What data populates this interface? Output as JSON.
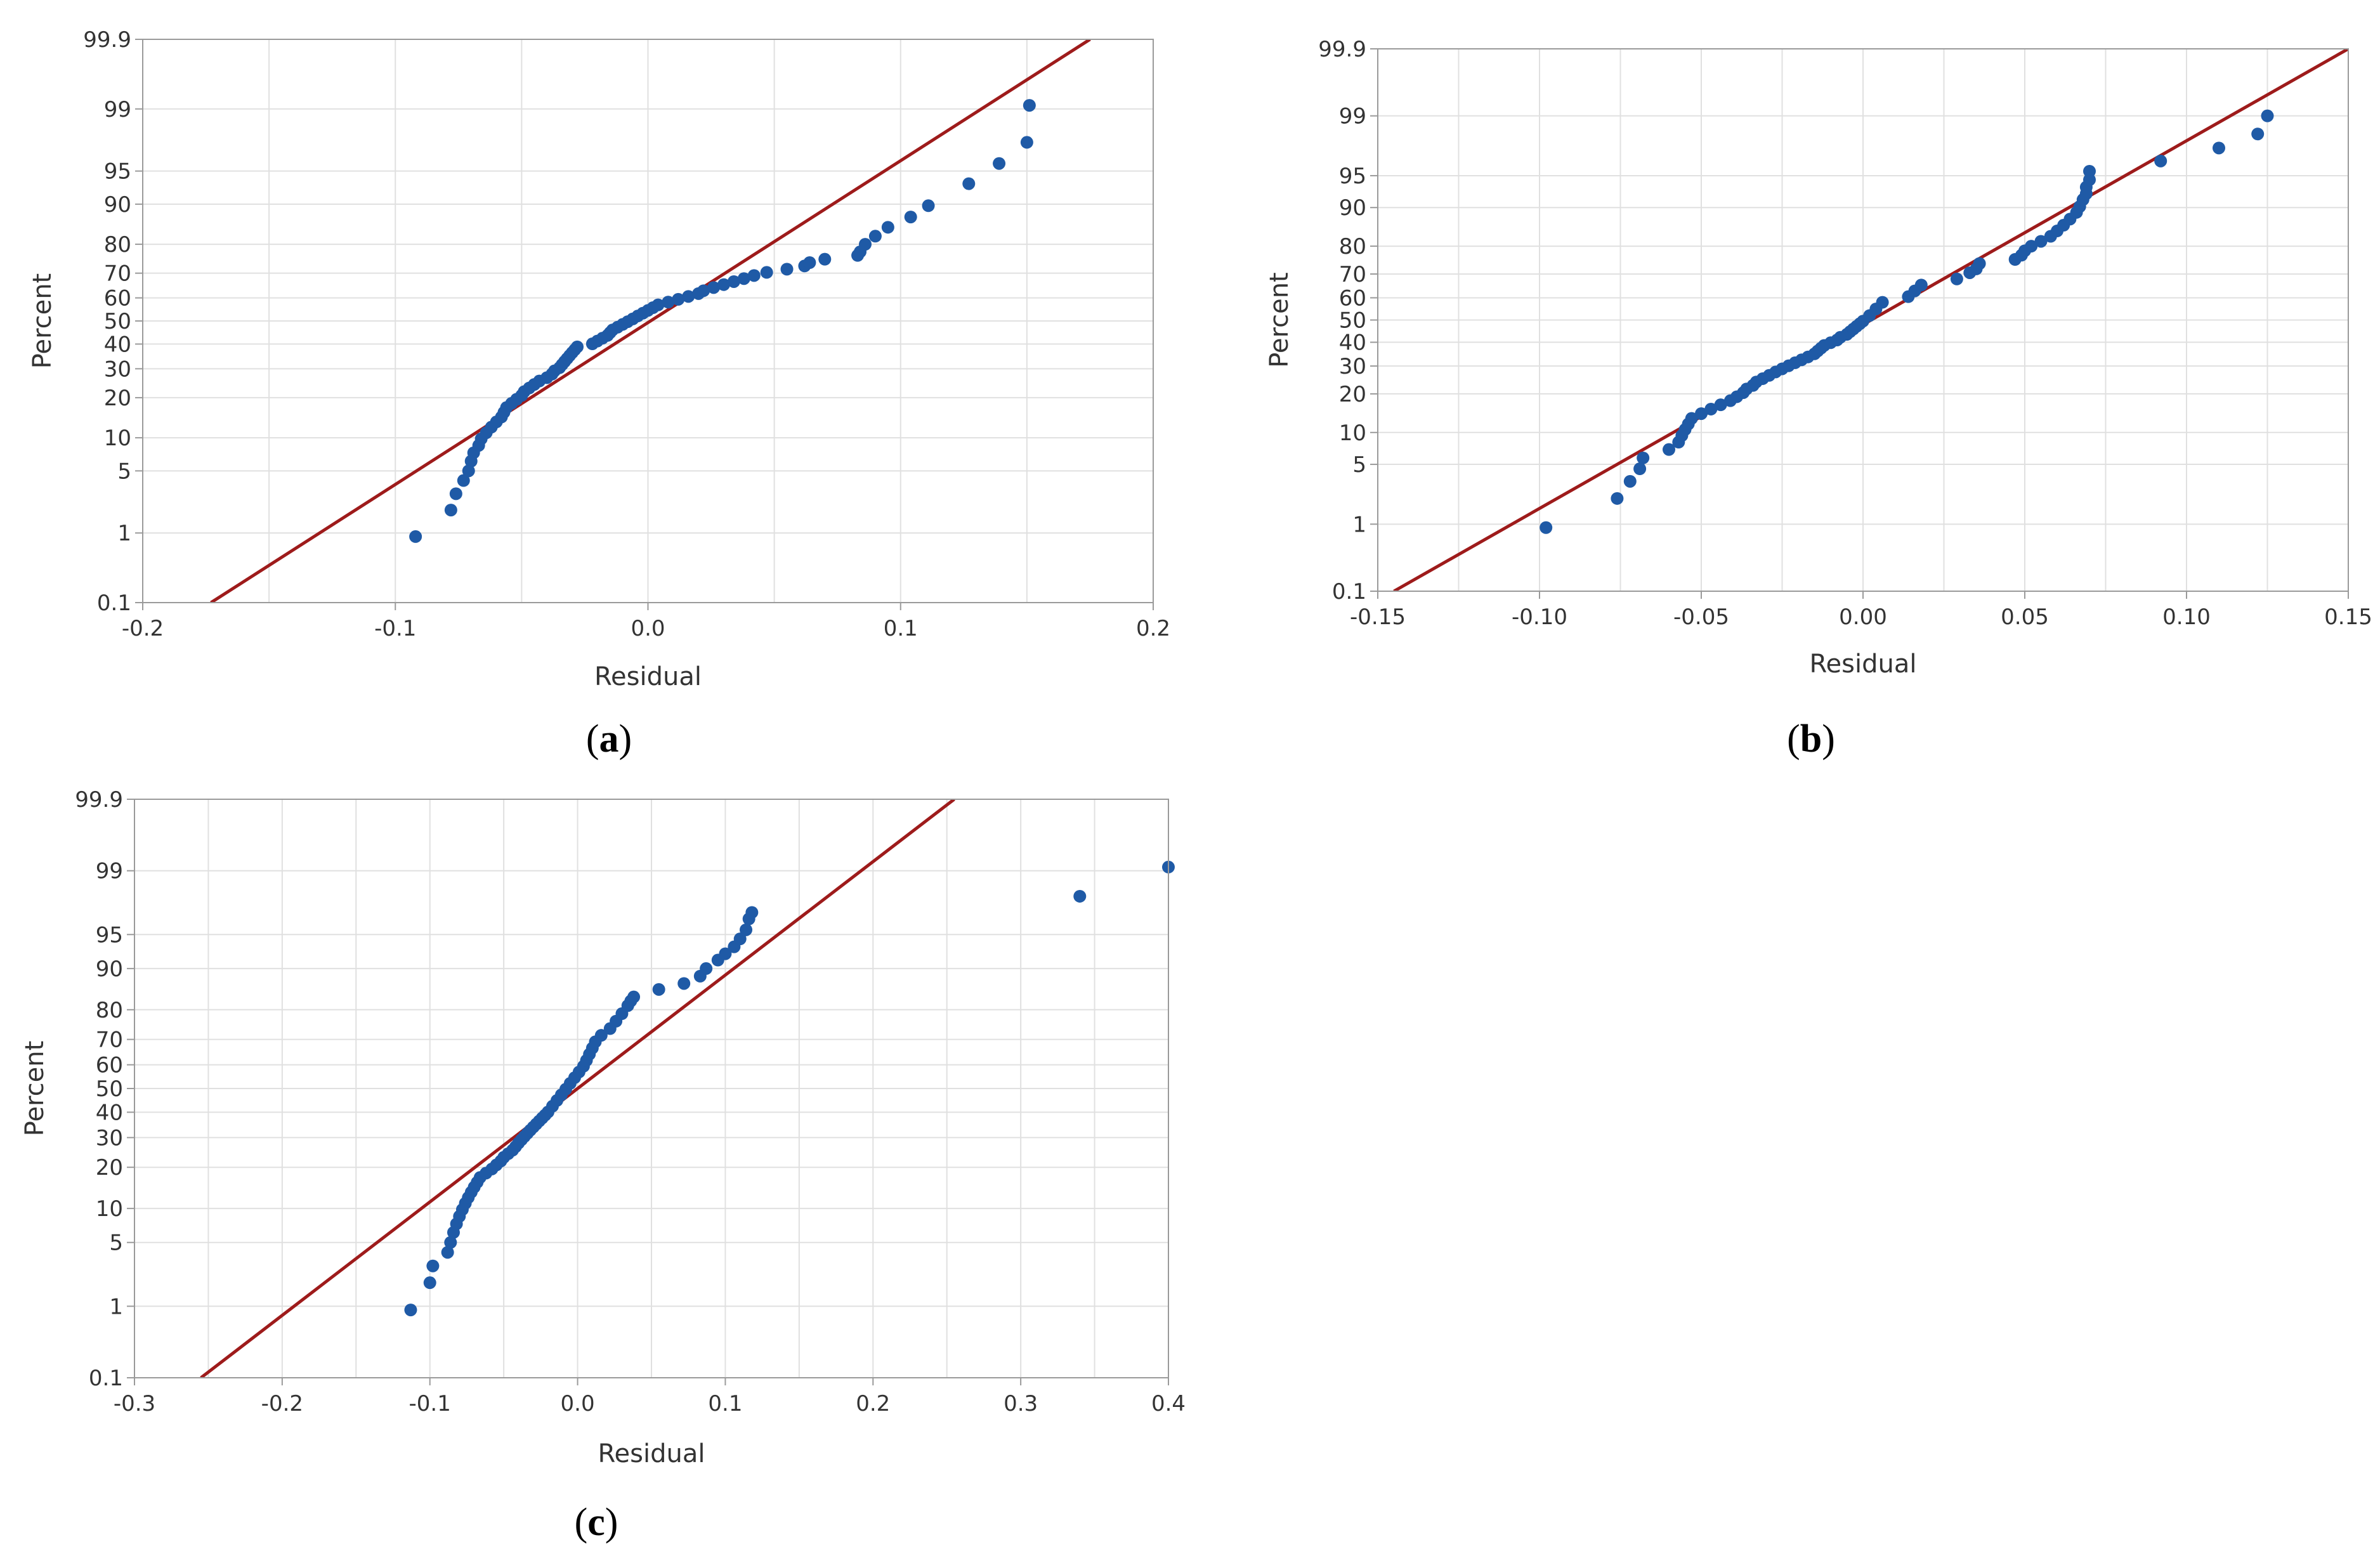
{
  "colors": {
    "line": "#9e1b1b",
    "point": "#1f5aa6",
    "grid": "#e0e0e0",
    "frame": "#9a9a9a"
  },
  "chart_data": [
    {
      "panel": "(a)",
      "panel_letter": "a",
      "type": "scatter",
      "subtype": "normal probability plot",
      "xlabel": "Residual",
      "ylabel": "Percent",
      "xlim": [
        -0.2,
        0.2
      ],
      "x_ticks": [
        -0.2,
        -0.1,
        0.0,
        0.1,
        0.2
      ],
      "x_tick_labels": [
        "-0.2",
        "-0.1",
        "0.0",
        "0.1",
        "0.2"
      ],
      "x_grid": [
        -0.2,
        -0.15,
        -0.1,
        -0.05,
        0.0,
        0.05,
        0.1,
        0.15,
        0.2
      ],
      "y_ticks": [
        0.1,
        1,
        5,
        10,
        20,
        30,
        40,
        50,
        60,
        70,
        80,
        90,
        95,
        99,
        99.9
      ],
      "y_tick_labels": [
        "0.1",
        "1",
        "5",
        "10",
        "20",
        "30",
        "40",
        "50",
        "60",
        "70",
        "80",
        "90",
        "95",
        "99",
        "99.9"
      ],
      "fit_line": {
        "x_at_0_1": -0.173,
        "x_at_99_9": 0.175
      },
      "x": [
        -0.092,
        -0.078,
        -0.076,
        -0.073,
        -0.071,
        -0.07,
        -0.069,
        -0.067,
        -0.066,
        -0.064,
        -0.062,
        -0.06,
        -0.058,
        -0.057,
        -0.056,
        -0.054,
        -0.052,
        -0.05,
        -0.049,
        -0.047,
        -0.045,
        -0.043,
        -0.04,
        -0.038,
        -0.037,
        -0.035,
        -0.034,
        -0.033,
        -0.032,
        -0.031,
        -0.03,
        -0.029,
        -0.028,
        -0.022,
        -0.02,
        -0.018,
        -0.016,
        -0.015,
        -0.014,
        -0.012,
        -0.01,
        -0.008,
        -0.006,
        -0.004,
        -0.002,
        0.0,
        0.002,
        0.004,
        0.008,
        0.012,
        0.016,
        0.02,
        0.022,
        0.026,
        0.03,
        0.034,
        0.038,
        0.042,
        0.047,
        0.055,
        0.062,
        0.064,
        0.07,
        0.083,
        0.084,
        0.086,
        0.09,
        0.095,
        0.104,
        0.111,
        0.127,
        0.139,
        0.15,
        0.151
      ],
      "y": [
        0.9,
        1.9,
        2.9,
        4.0,
        5.0,
        6.2,
        7.4,
        8.6,
        9.8,
        11.0,
        12.2,
        13.4,
        14.6,
        15.8,
        17.1,
        18.3,
        19.5,
        20.7,
        21.9,
        23.1,
        24.3,
        25.5,
        26.7,
        28.0,
        29.2,
        30.4,
        31.6,
        32.8,
        34.0,
        35.2,
        36.4,
        37.6,
        38.8,
        40.1,
        41.3,
        42.5,
        43.7,
        44.9,
        46.1,
        47.3,
        48.5,
        49.7,
        50.9,
        52.2,
        53.4,
        54.6,
        55.8,
        57.0,
        58.2,
        59.4,
        60.6,
        61.8,
        63.0,
        64.3,
        65.5,
        66.7,
        67.9,
        69.1,
        70.3,
        71.5,
        72.7,
        73.9,
        75.1,
        76.4,
        77.6,
        80.0,
        82.4,
        84.8,
        87.3,
        89.7,
        93.4,
        95.8,
        97.5,
        99.1
      ]
    },
    {
      "panel": "(b)",
      "panel_letter": "b",
      "type": "scatter",
      "subtype": "normal probability plot",
      "xlabel": "Residual",
      "ylabel": "Percent",
      "xlim": [
        -0.15,
        0.15
      ],
      "x_ticks": [
        -0.15,
        -0.1,
        -0.05,
        0.0,
        0.05,
        0.1,
        0.15
      ],
      "x_tick_labels": [
        "-0.15",
        "-0.10",
        "-0.05",
        "0.00",
        "0.05",
        "0.10",
        "0.15"
      ],
      "x_grid": [
        -0.15,
        -0.125,
        -0.1,
        -0.075,
        -0.05,
        -0.025,
        0.0,
        0.025,
        0.05,
        0.075,
        0.1,
        0.125,
        0.15
      ],
      "y_ticks": [
        0.1,
        1,
        5,
        10,
        20,
        30,
        40,
        50,
        60,
        70,
        80,
        90,
        95,
        99,
        99.9
      ],
      "y_tick_labels": [
        "0.1",
        "1",
        "5",
        "10",
        "20",
        "30",
        "40",
        "50",
        "60",
        "70",
        "80",
        "90",
        "95",
        "99",
        "99.9"
      ],
      "fit_line": {
        "x_at_0_1": -0.145,
        "x_at_99_9": 0.15
      },
      "x": [
        -0.098,
        -0.076,
        -0.072,
        -0.069,
        -0.068,
        -0.06,
        -0.057,
        -0.056,
        -0.055,
        -0.054,
        -0.053,
        -0.05,
        -0.047,
        -0.044,
        -0.041,
        -0.039,
        -0.037,
        -0.036,
        -0.034,
        -0.033,
        -0.031,
        -0.029,
        -0.027,
        -0.025,
        -0.023,
        -0.021,
        -0.019,
        -0.017,
        -0.015,
        -0.014,
        -0.013,
        -0.012,
        -0.01,
        -0.008,
        -0.007,
        -0.005,
        -0.004,
        -0.003,
        -0.002,
        -0.001,
        0.0,
        0.002,
        0.004,
        0.006,
        0.014,
        0.016,
        0.018,
        0.029,
        0.033,
        0.035,
        0.036,
        0.047,
        0.049,
        0.05,
        0.052,
        0.055,
        0.058,
        0.06,
        0.062,
        0.064,
        0.066,
        0.067,
        0.068,
        0.069,
        0.069,
        0.07,
        0.07,
        0.092,
        0.11,
        0.122,
        0.125
      ],
      "y": [
        0.9,
        2.1,
        3.3,
        4.5,
        5.8,
        7.0,
        8.2,
        9.4,
        10.6,
        11.8,
        13.1,
        14.3,
        15.5,
        16.7,
        17.9,
        19.1,
        20.4,
        21.6,
        22.8,
        24.0,
        25.2,
        26.4,
        27.7,
        28.9,
        30.1,
        31.3,
        32.5,
        33.7,
        35.0,
        36.2,
        37.4,
        38.6,
        39.8,
        41.0,
        42.2,
        43.5,
        44.7,
        45.9,
        47.1,
        48.3,
        49.5,
        52.0,
        55.0,
        58.0,
        60.5,
        63.0,
        65.5,
        68.0,
        70.5,
        72.0,
        74.0,
        75.5,
        77.0,
        78.5,
        80.0,
        81.5,
        83.0,
        84.5,
        86.0,
        87.5,
        89.0,
        90.2,
        91.5,
        92.5,
        93.5,
        94.5,
        95.5,
        96.5,
        97.5,
        98.3,
        99.0
      ]
    },
    {
      "panel": "(c)",
      "panel_letter": "c",
      "type": "scatter",
      "subtype": "normal probability plot",
      "xlabel": "Residual",
      "ylabel": "Percent",
      "xlim": [
        -0.3,
        0.4
      ],
      "x_ticks": [
        -0.3,
        -0.2,
        -0.1,
        0.0,
        0.1,
        0.2,
        0.3,
        0.4
      ],
      "x_tick_labels": [
        "-0.3",
        "-0.2",
        "-0.1",
        "0.0",
        "0.1",
        "0.2",
        "0.3",
        "0.4"
      ],
      "x_grid": [
        -0.3,
        -0.25,
        -0.2,
        -0.15,
        -0.1,
        -0.05,
        0.0,
        0.05,
        0.1,
        0.15,
        0.2,
        0.25,
        0.3,
        0.35,
        0.4
      ],
      "y_ticks": [
        0.1,
        1,
        5,
        10,
        20,
        30,
        40,
        50,
        60,
        70,
        80,
        90,
        95,
        99,
        99.9
      ],
      "y_tick_labels": [
        "0.1",
        "1",
        "5",
        "10",
        "20",
        "30",
        "40",
        "50",
        "60",
        "70",
        "80",
        "90",
        "95",
        "99",
        "99.9"
      ],
      "fit_line": {
        "x_at_0_1": -0.255,
        "x_at_99_9": 0.255
      },
      "x": [
        -0.113,
        -0.1,
        -0.098,
        -0.088,
        -0.086,
        -0.084,
        -0.082,
        -0.08,
        -0.078,
        -0.076,
        -0.074,
        -0.072,
        -0.07,
        -0.068,
        -0.066,
        -0.062,
        -0.058,
        -0.055,
        -0.052,
        -0.05,
        -0.047,
        -0.044,
        -0.042,
        -0.04,
        -0.038,
        -0.036,
        -0.034,
        -0.032,
        -0.03,
        -0.028,
        -0.026,
        -0.024,
        -0.022,
        -0.02,
        -0.017,
        -0.014,
        -0.011,
        -0.008,
        -0.005,
        -0.002,
        0.001,
        0.004,
        0.006,
        0.008,
        0.01,
        0.012,
        0.016,
        0.022,
        0.026,
        0.03,
        0.034,
        0.036,
        0.038,
        0.055,
        0.072,
        0.083,
        0.087,
        0.095,
        0.1,
        0.106,
        0.11,
        0.114,
        0.116,
        0.118,
        0.34,
        0.4
      ],
      "y": [
        0.9,
        1.9,
        2.9,
        4.0,
        5.0,
        6.2,
        7.4,
        8.6,
        9.8,
        11.0,
        12.2,
        13.4,
        14.6,
        15.8,
        17.1,
        18.3,
        19.5,
        20.7,
        21.9,
        23.1,
        24.3,
        25.5,
        26.7,
        28.0,
        29.2,
        30.4,
        31.6,
        32.8,
        34.0,
        35.2,
        36.4,
        37.6,
        38.8,
        40.1,
        42.5,
        44.9,
        47.3,
        49.7,
        52.2,
        54.6,
        57.0,
        59.4,
        61.8,
        64.3,
        66.7,
        69.1,
        71.5,
        73.9,
        76.4,
        78.8,
        81.2,
        82.5,
        83.6,
        85.5,
        86.9,
        88.5,
        90.0,
        91.5,
        92.5,
        93.5,
        94.5,
        95.5,
        96.5,
        97.0,
        98.0,
        99.1
      ]
    }
  ]
}
